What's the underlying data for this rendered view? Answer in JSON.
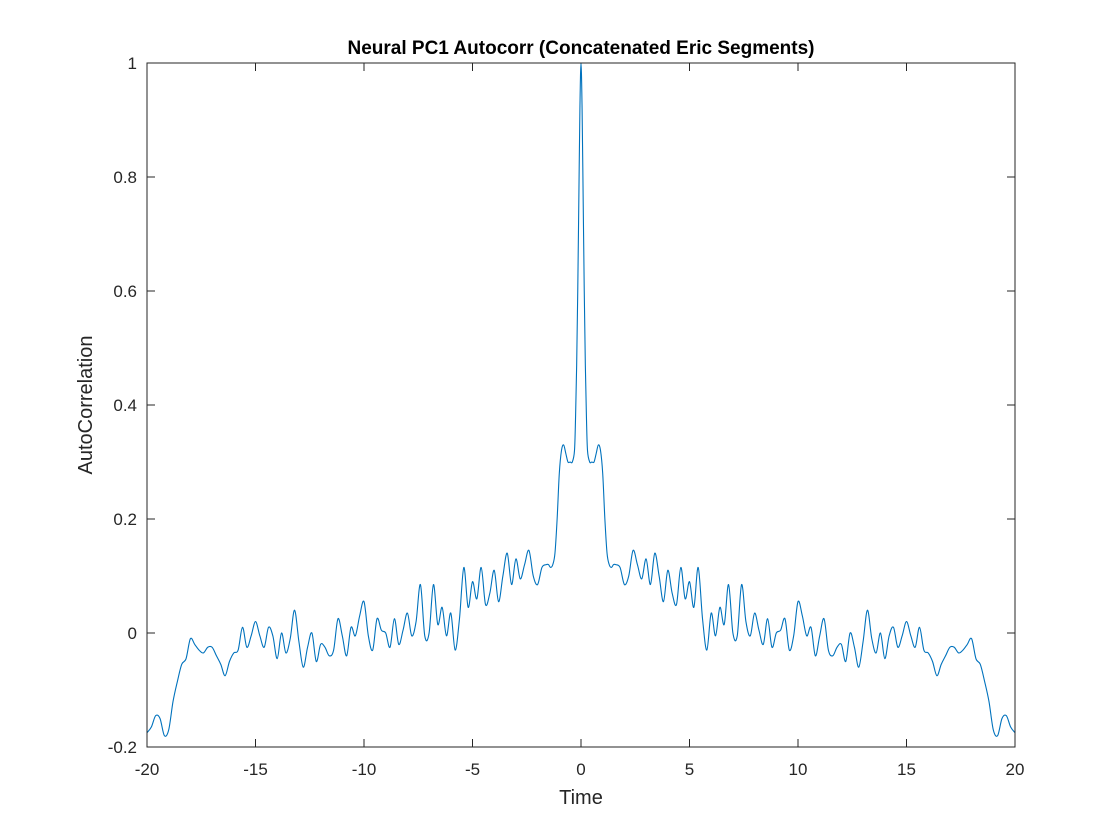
{
  "chart_data": {
    "type": "line",
    "title": "Neural PC1 Autocorr (Concatenated Eric Segments)",
    "xlabel": "Time",
    "ylabel": "AutoCorrelation",
    "xlim": [
      -20,
      20
    ],
    "ylim": [
      -0.2,
      1
    ],
    "xticks": [
      -20,
      -15,
      -10,
      -5,
      0,
      5,
      10,
      15,
      20
    ],
    "yticks": [
      -0.2,
      0,
      0.2,
      0.4,
      0.6,
      0.8,
      1
    ],
    "xtick_labels": [
      "-20",
      "-15",
      "-10",
      "-5",
      "0",
      "5",
      "10",
      "15",
      "20"
    ],
    "ytick_labels": [
      "-0.2",
      "0",
      "0.2",
      "0.4",
      "0.6",
      "0.8",
      "1"
    ],
    "grid": false,
    "box": true,
    "series": [
      {
        "color": "#0072BD",
        "symmetric_about_zero": true,
        "x": [
          0,
          0.05,
          0.1,
          0.15,
          0.2,
          0.25,
          0.3,
          0.4,
          0.5,
          0.6,
          0.7,
          0.8,
          0.9,
          1.0,
          1.1,
          1.2,
          1.3,
          1.4,
          1.5,
          1.6,
          1.8,
          2.0,
          2.2,
          2.4,
          2.6,
          2.8,
          3.0,
          3.2,
          3.4,
          3.6,
          3.8,
          4.0,
          4.2,
          4.4,
          4.6,
          4.8,
          5.0,
          5.2,
          5.4,
          5.6,
          5.8,
          6.0,
          6.2,
          6.4,
          6.6,
          6.8,
          7.0,
          7.2,
          7.4,
          7.6,
          7.8,
          8.0,
          8.2,
          8.4,
          8.6,
          8.8,
          9.0,
          9.2,
          9.4,
          9.6,
          9.8,
          10.0,
          10.2,
          10.4,
          10.6,
          10.8,
          11.0,
          11.2,
          11.4,
          11.6,
          11.8,
          12.0,
          12.2,
          12.4,
          12.6,
          12.8,
          13.0,
          13.2,
          13.4,
          13.6,
          13.8,
          14.0,
          14.2,
          14.4,
          14.6,
          14.8,
          15.0,
          15.2,
          15.4,
          15.6,
          15.8,
          16.0,
          16.2,
          16.4,
          16.6,
          16.8,
          17.0,
          17.2,
          17.4,
          17.6,
          17.8,
          18.0,
          18.2,
          18.4,
          18.6,
          18.8,
          19.0,
          19.2,
          19.4,
          19.6,
          19.8,
          20.0
        ],
        "y": [
          1.0,
          0.92,
          0.76,
          0.6,
          0.47,
          0.38,
          0.32,
          0.3,
          0.3,
          0.3,
          0.315,
          0.33,
          0.32,
          0.28,
          0.2,
          0.14,
          0.12,
          0.115,
          0.12,
          0.12,
          0.115,
          0.085,
          0.1,
          0.145,
          0.12,
          0.095,
          0.13,
          0.085,
          0.14,
          0.1,
          0.055,
          0.11,
          0.07,
          0.05,
          0.115,
          0.06,
          0.09,
          0.045,
          0.115,
          0.025,
          -0.03,
          0.035,
          -0.005,
          0.045,
          0.015,
          0.085,
          0.0,
          -0.005,
          0.085,
          0.02,
          -0.005,
          0.035,
          0.005,
          -0.02,
          0.025,
          -0.025,
          0.0,
          0.005,
          0.025,
          -0.03,
          -0.005,
          0.055,
          0.03,
          -0.005,
          0.01,
          -0.04,
          -0.005,
          0.025,
          -0.03,
          -0.04,
          -0.025,
          -0.02,
          -0.05,
          0.0,
          -0.025,
          -0.06,
          -0.015,
          0.04,
          -0.01,
          -0.035,
          0.0,
          -0.045,
          -0.005,
          0.01,
          -0.025,
          -0.005,
          0.02,
          -0.005,
          -0.025,
          0.01,
          -0.03,
          -0.035,
          -0.05,
          -0.075,
          -0.055,
          -0.04,
          -0.025,
          -0.025,
          -0.035,
          -0.03,
          -0.02,
          -0.01,
          -0.045,
          -0.055,
          -0.085,
          -0.12,
          -0.17,
          -0.18,
          -0.15,
          -0.145,
          -0.165,
          -0.175
        ]
      }
    ]
  }
}
